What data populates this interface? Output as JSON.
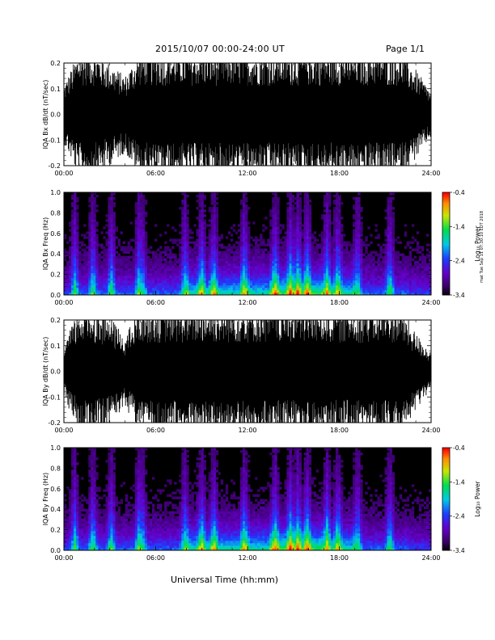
{
  "header": {
    "title": "2015/10/07  00:00-24:00 UT",
    "page": "Page 1/1"
  },
  "x_axis_label": "Universal Time (hh:mm)",
  "side_stamp": "mat Tue Sep 11 07:30:10 EDT 2018",
  "colorbar": {
    "label": "Log₁₀ Power",
    "ticks": [
      "-0.4",
      "-1.4",
      "-2.4",
      "-3.4"
    ]
  },
  "chart_data": [
    {
      "type": "line",
      "ylabel": "IQA Bx dB/dt (nT/sec)",
      "xlim": [
        0,
        24
      ],
      "ylim": [
        -0.2,
        0.2
      ],
      "xticks": [
        "00:00",
        "06:00",
        "12:00",
        "18:00",
        "24:00"
      ],
      "yticks": [
        "0.2",
        "0.1",
        "0.0",
        "-0.1",
        "-0.2"
      ],
      "x_hours": [
        0,
        1,
        2,
        3,
        4,
        5,
        6,
        7,
        8,
        9,
        10,
        11,
        12,
        13,
        14,
        15,
        16,
        17,
        18,
        19,
        20,
        21,
        22,
        23,
        24
      ],
      "envelope_amplitude": [
        0.09,
        0.2,
        0.2,
        0.16,
        0.12,
        0.2,
        0.2,
        0.2,
        0.2,
        0.2,
        0.2,
        0.2,
        0.2,
        0.2,
        0.2,
        0.2,
        0.2,
        0.2,
        0.2,
        0.2,
        0.2,
        0.2,
        0.2,
        0.14,
        0.07
      ]
    },
    {
      "type": "heatmap",
      "ylabel": "IQA Bx Freq (Hz)",
      "xlim": [
        0,
        24
      ],
      "ylim": [
        0.0,
        1.0
      ],
      "xticks": [
        "00:00",
        "06:00",
        "12:00",
        "18:00",
        "24:00"
      ],
      "yticks": [
        "1.0",
        "0.8",
        "0.6",
        "0.4",
        "0.2",
        "0.0"
      ],
      "zlim": [
        -3.4,
        -0.4
      ],
      "z_label": "Log10 Power",
      "burst_hours": [
        0.7,
        1.9,
        3.1,
        4.9,
        5.1,
        7.9,
        9.0,
        9.8,
        11.8,
        13.8,
        14.8,
        15.3,
        15.9,
        17.2,
        17.9,
        19.2,
        21.3
      ]
    },
    {
      "type": "line",
      "ylabel": "IQA By dB/dt (nT/sec)",
      "xlim": [
        0,
        24
      ],
      "ylim": [
        -0.2,
        0.2
      ],
      "xticks": [
        "00:00",
        "06:00",
        "12:00",
        "18:00",
        "24:00"
      ],
      "yticks": [
        "0.2",
        "0.1",
        "0.0",
        "-0.1",
        "-0.2"
      ],
      "x_hours": [
        0,
        1,
        2,
        3,
        4,
        5,
        6,
        7,
        8,
        9,
        10,
        11,
        12,
        13,
        14,
        15,
        16,
        17,
        18,
        19,
        20,
        21,
        22,
        23,
        24
      ],
      "envelope_amplitude": [
        0.08,
        0.2,
        0.2,
        0.17,
        0.11,
        0.2,
        0.2,
        0.2,
        0.2,
        0.2,
        0.2,
        0.2,
        0.2,
        0.2,
        0.2,
        0.2,
        0.2,
        0.2,
        0.2,
        0.2,
        0.2,
        0.2,
        0.2,
        0.12,
        0.06
      ]
    },
    {
      "type": "heatmap",
      "ylabel": "IQA By Freq (Hz)",
      "xlim": [
        0,
        24
      ],
      "ylim": [
        0.0,
        1.0
      ],
      "xticks": [
        "00:00",
        "06:00",
        "12:00",
        "18:00",
        "24:00"
      ],
      "yticks": [
        "1.0",
        "0.8",
        "0.6",
        "0.4",
        "0.2",
        "0.0"
      ],
      "zlim": [
        -3.4,
        -0.4
      ],
      "z_label": "Log10 Power",
      "burst_hours": [
        0.7,
        1.9,
        3.1,
        4.9,
        5.1,
        7.9,
        9.0,
        9.8,
        11.8,
        13.8,
        14.8,
        15.3,
        15.9,
        17.2,
        17.9,
        19.2,
        21.3
      ]
    }
  ]
}
